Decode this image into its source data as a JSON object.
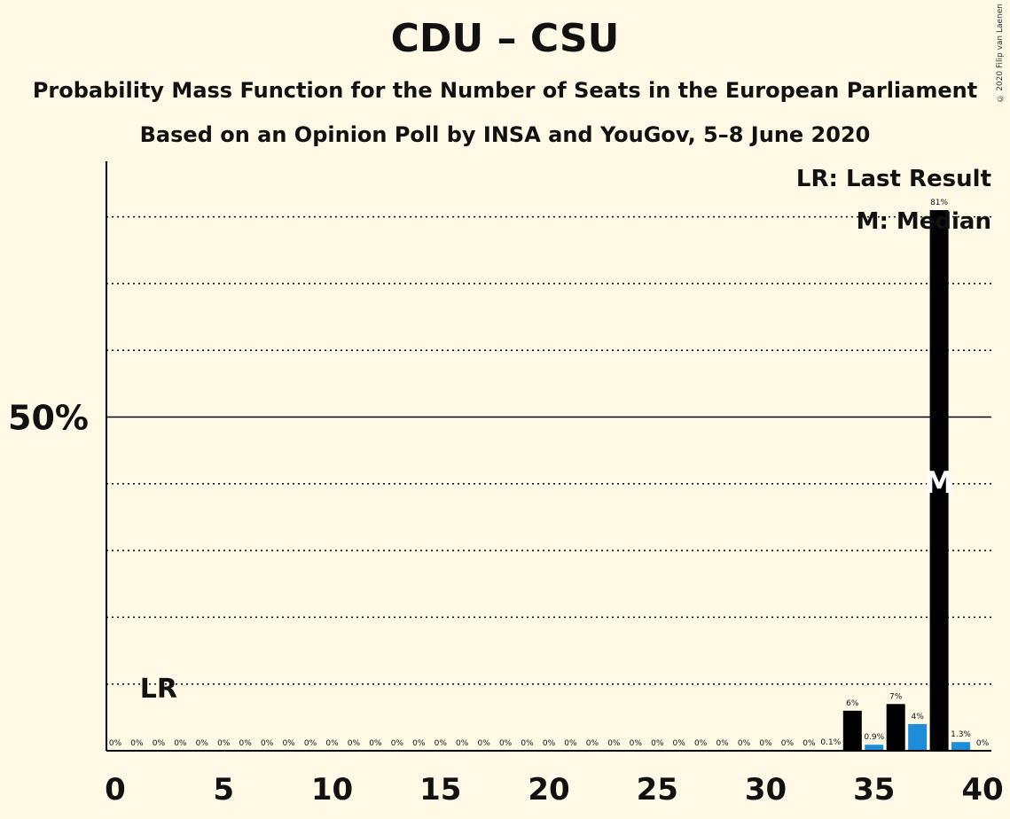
{
  "title": "CDU – CSU",
  "subtitle": "Probability Mass Function for the Number of Seats in the European Parliament",
  "subtitle2": "Based on an Opinion Poll by INSA and YouGov, 5–8 June 2020",
  "copyright": "© 2020 Filip van Laenen",
  "legend": {
    "last_result": "LR: Last Result",
    "median": "M: Median"
  },
  "colors": {
    "background": "#FFF9E6",
    "bar_black": "#000000",
    "bar_blue": "#1C8DD9",
    "text": "#111111"
  },
  "chart_data": {
    "type": "bar",
    "title": "CDU – CSU",
    "x": [
      0,
      1,
      2,
      3,
      4,
      5,
      6,
      7,
      8,
      9,
      10,
      11,
      12,
      13,
      14,
      15,
      16,
      17,
      18,
      19,
      20,
      21,
      22,
      23,
      24,
      25,
      26,
      27,
      28,
      29,
      30,
      31,
      32,
      33,
      34,
      35,
      36,
      37,
      38,
      39,
      40
    ],
    "values": [
      0,
      0,
      0,
      0,
      0,
      0,
      0,
      0,
      0,
      0,
      0,
      0,
      0,
      0,
      0,
      0,
      0,
      0,
      0,
      0,
      0,
      0,
      0,
      0,
      0,
      0,
      0,
      0,
      0,
      0,
      0,
      0,
      0,
      0.1,
      6,
      0.9,
      7,
      4,
      81,
      1.3,
      0
    ],
    "labels": [
      "0%",
      "0%",
      "0%",
      "0%",
      "0%",
      "0%",
      "0%",
      "0%",
      "0%",
      "0%",
      "0%",
      "0%",
      "0%",
      "0%",
      "0%",
      "0%",
      "0%",
      "0%",
      "0%",
      "0%",
      "0%",
      "0%",
      "0%",
      "0%",
      "0%",
      "0%",
      "0%",
      "0%",
      "0%",
      "0%",
      "0%",
      "0%",
      "0%",
      "0.1%",
      "6%",
      "0.9%",
      "7%",
      "4%",
      "81%",
      "1.3%",
      "0%"
    ],
    "bar_color": [
      "black",
      "black",
      "black",
      "black",
      "black",
      "black",
      "black",
      "black",
      "black",
      "black",
      "black",
      "black",
      "black",
      "black",
      "black",
      "black",
      "black",
      "black",
      "black",
      "black",
      "black",
      "black",
      "black",
      "black",
      "black",
      "black",
      "black",
      "black",
      "black",
      "black",
      "black",
      "black",
      "black",
      "black",
      "black",
      "blue",
      "black",
      "blue",
      "black",
      "blue",
      "black"
    ],
    "x_ticks": [
      0,
      5,
      10,
      15,
      20,
      25,
      30,
      35,
      40
    ],
    "y_tick_label": "50%",
    "y_tick_value": 50,
    "ylim": [
      0,
      88
    ],
    "gridlines_every": 10,
    "last_result_seat": 2,
    "last_result_label": "LR",
    "median_seat": 38,
    "median_label": "M"
  }
}
